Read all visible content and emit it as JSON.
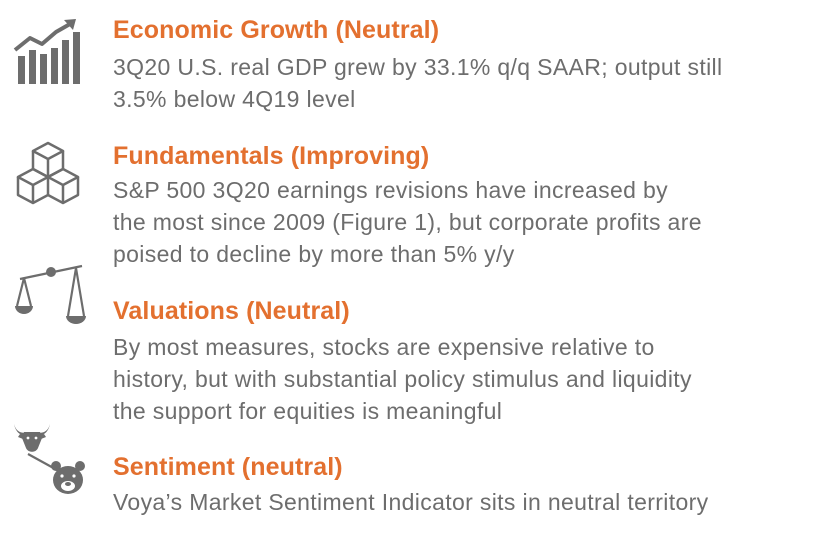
{
  "colors": {
    "heading": "#e3702f",
    "body": "#6d6d6d",
    "icon": "#6d6d6d"
  },
  "items": [
    {
      "icon": "bar-chart-growth-icon",
      "heading": "Economic Growth (Neutral)",
      "lines": [
        "3Q20 U.S. real GDP grew by 33.1% q/q SAAR; output still",
        "3.5% below 4Q19 level"
      ]
    },
    {
      "icon": "stacked-cubes-icon",
      "heading": "Fundamentals (Improving)",
      "lines": [
        "S&P 500 3Q20 earnings revisions have increased by",
        "the most since 2009 (Figure 1), but corporate profits are",
        "poised to decline by more than 5% y/y"
      ]
    },
    {
      "icon": "balance-scale-icon",
      "heading": "Valuations (Neutral)",
      "lines": [
        "By most measures, stocks are expensive relative to",
        "history, but with substantial policy stimulus and liquidity",
        "the support for equities is meaningful"
      ]
    },
    {
      "icon": "bull-bear-icon",
      "heading": "Sentiment (neutral)",
      "lines": [
        "Voya’s Market Sentiment Indicator sits in neutral territory"
      ]
    }
  ]
}
